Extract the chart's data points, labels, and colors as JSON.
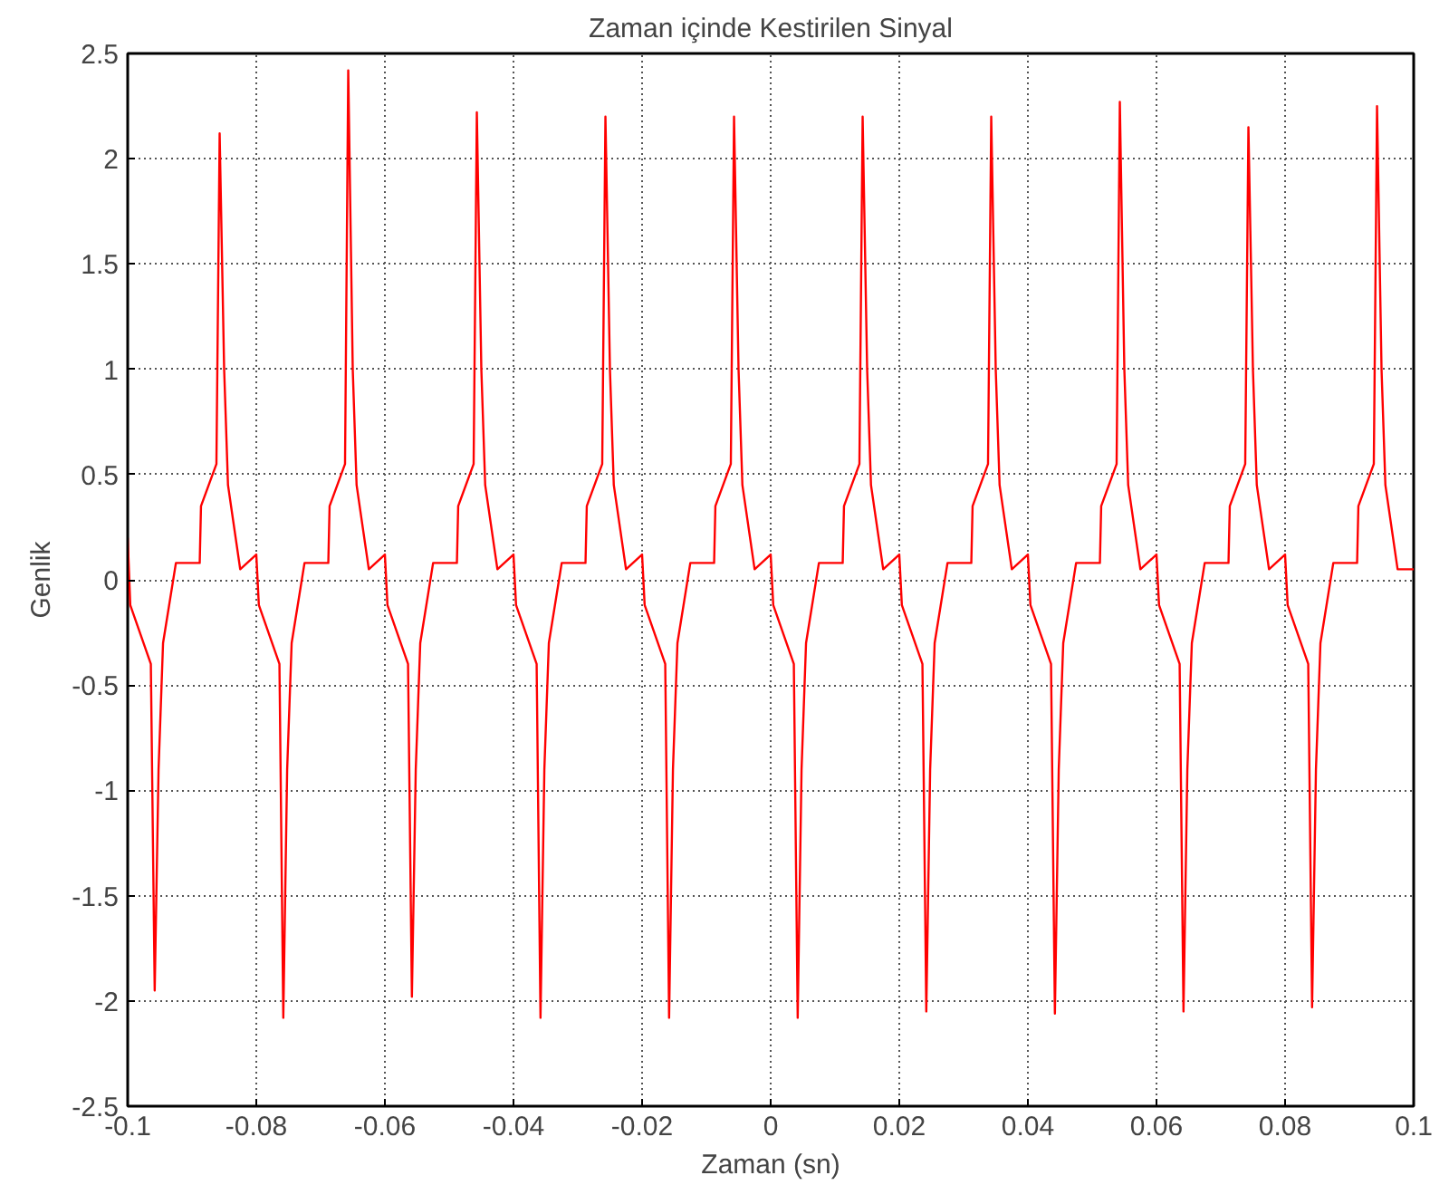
{
  "chart_data": {
    "type": "line",
    "title": "Zaman içinde Kestirilen Sinyal",
    "xlabel": "Zaman (sn)",
    "ylabel": "Genlik",
    "xlim": [
      -0.1,
      0.1
    ],
    "ylim": [
      -2.5,
      2.5
    ],
    "xticks": [
      -0.1,
      -0.08,
      -0.06,
      -0.04,
      -0.02,
      0,
      0.02,
      0.04,
      0.06,
      0.08,
      0.1
    ],
    "yticks": [
      -2.5,
      -2,
      -1.5,
      -1,
      -0.5,
      0,
      0.5,
      1,
      1.5,
      2,
      2.5
    ],
    "grid": true,
    "line_style": "solid",
    "marker": "none",
    "series": [
      {
        "color": "#ff0000",
        "x": [
          -0.1,
          -0.0996,
          -0.0964,
          -0.0958,
          -0.0952,
          -0.0945,
          -0.0925,
          -0.0888,
          -0.0886,
          -0.0862,
          -0.0857,
          -0.085,
          -0.0844,
          -0.0825,
          -0.08,
          -0.0796,
          -0.0764,
          -0.0758,
          -0.0752,
          -0.0745,
          -0.0725,
          -0.0688,
          -0.0686,
          -0.0662,
          -0.0657,
          -0.065,
          -0.0644,
          -0.0625,
          -0.06,
          -0.0596,
          -0.0564,
          -0.0558,
          -0.0552,
          -0.0545,
          -0.0525,
          -0.0488,
          -0.0486,
          -0.0462,
          -0.0457,
          -0.045,
          -0.0444,
          -0.0425,
          -0.04,
          -0.0396,
          -0.0364,
          -0.0358,
          -0.0352,
          -0.0345,
          -0.0325,
          -0.0288,
          -0.0286,
          -0.0262,
          -0.0257,
          -0.025,
          -0.0244,
          -0.0225,
          -0.02,
          -0.0196,
          -0.0164,
          -0.0158,
          -0.0152,
          -0.0145,
          -0.0125,
          -0.0088,
          -0.0086,
          -0.0062,
          -0.0057,
          -0.005,
          -0.0044,
          -0.0025,
          0,
          0.0004,
          0.0036,
          0.0042,
          0.0048,
          0.0055,
          0.0075,
          0.0112,
          0.0114,
          0.0138,
          0.0143,
          0.015,
          0.0156,
          0.0175,
          0.02,
          0.0204,
          0.0236,
          0.0242,
          0.0248,
          0.0255,
          0.0275,
          0.0312,
          0.0314,
          0.0338,
          0.0343,
          0.035,
          0.0356,
          0.0375,
          0.04,
          0.0404,
          0.0436,
          0.0442,
          0.0448,
          0.0455,
          0.0475,
          0.0512,
          0.0514,
          0.0538,
          0.0543,
          0.055,
          0.0556,
          0.0575,
          0.06,
          0.0604,
          0.0636,
          0.0642,
          0.0648,
          0.0655,
          0.0675,
          0.0712,
          0.0714,
          0.0738,
          0.0743,
          0.075,
          0.0756,
          0.0775,
          0.08,
          0.0804,
          0.0836,
          0.0842,
          0.0848,
          0.0855,
          0.0875,
          0.0912,
          0.0914,
          0.0938,
          0.0943,
          0.095,
          0.0956,
          0.0975,
          0.1
        ],
        "values": [
          0.2,
          -0.12,
          -0.4,
          -1.95,
          -0.9,
          -0.3,
          0.08,
          0.08,
          0.35,
          0.55,
          2.12,
          1.0,
          0.45,
          0.05,
          0.12,
          -0.12,
          -0.4,
          -2.08,
          -0.9,
          -0.3,
          0.08,
          0.08,
          0.35,
          0.55,
          2.42,
          1.0,
          0.45,
          0.05,
          0.12,
          -0.12,
          -0.4,
          -1.98,
          -0.9,
          -0.3,
          0.08,
          0.08,
          0.35,
          0.55,
          2.22,
          1.0,
          0.45,
          0.05,
          0.12,
          -0.12,
          -0.4,
          -2.08,
          -0.9,
          -0.3,
          0.08,
          0.08,
          0.35,
          0.55,
          2.2,
          1.0,
          0.45,
          0.05,
          0.12,
          -0.12,
          -0.4,
          -2.08,
          -0.9,
          -0.3,
          0.08,
          0.08,
          0.35,
          0.55,
          2.2,
          1.0,
          0.45,
          0.05,
          0.12,
          -0.12,
          -0.4,
          -2.08,
          -0.9,
          -0.3,
          0.08,
          0.08,
          0.35,
          0.55,
          2.2,
          1.0,
          0.45,
          0.05,
          0.12,
          -0.12,
          -0.4,
          -2.05,
          -0.9,
          -0.3,
          0.08,
          0.08,
          0.35,
          0.55,
          2.2,
          1.0,
          0.45,
          0.05,
          0.12,
          -0.12,
          -0.4,
          -2.06,
          -0.9,
          -0.3,
          0.08,
          0.08,
          0.35,
          0.55,
          2.27,
          1.0,
          0.45,
          0.05,
          0.12,
          -0.12,
          -0.4,
          -2.05,
          -0.9,
          -0.3,
          0.08,
          0.08,
          0.35,
          0.55,
          2.15,
          1.0,
          0.45,
          0.05,
          0.12,
          -0.12,
          -0.4,
          -2.03,
          -0.9,
          -0.3,
          0.08,
          0.08,
          0.35,
          0.55,
          2.25,
          1.0,
          0.45,
          0.05,
          0.05
        ]
      }
    ]
  }
}
